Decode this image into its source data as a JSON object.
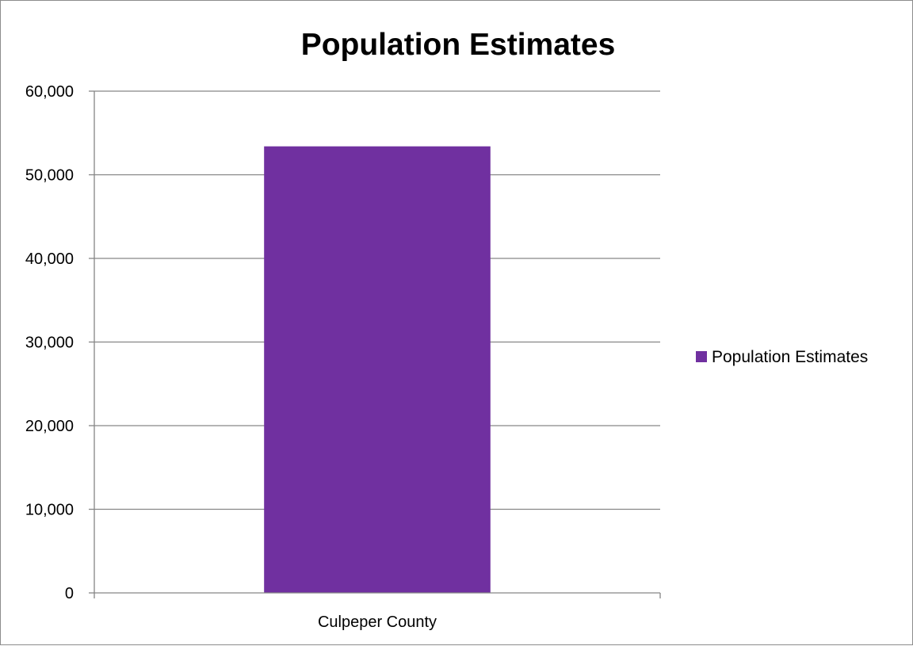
{
  "chart_data": {
    "type": "bar",
    "title": "Population Estimates",
    "categories": [
      "Culpeper County"
    ],
    "series": [
      {
        "name": "Population Estimates",
        "values": [
          53400
        ]
      }
    ],
    "ylim": [
      0,
      60000
    ],
    "yticks": [
      0,
      10000,
      20000,
      30000,
      40000,
      50000,
      60000
    ],
    "ytick_labels": [
      "0",
      "10,000",
      "20,000",
      "30,000",
      "40,000",
      "50,000",
      "60,000"
    ],
    "xlabel": "",
    "ylabel": "",
    "grid": true,
    "legend_position": "right"
  },
  "colors": {
    "bar": "#7030A0",
    "grid": "#868686",
    "axis": "#868686"
  }
}
